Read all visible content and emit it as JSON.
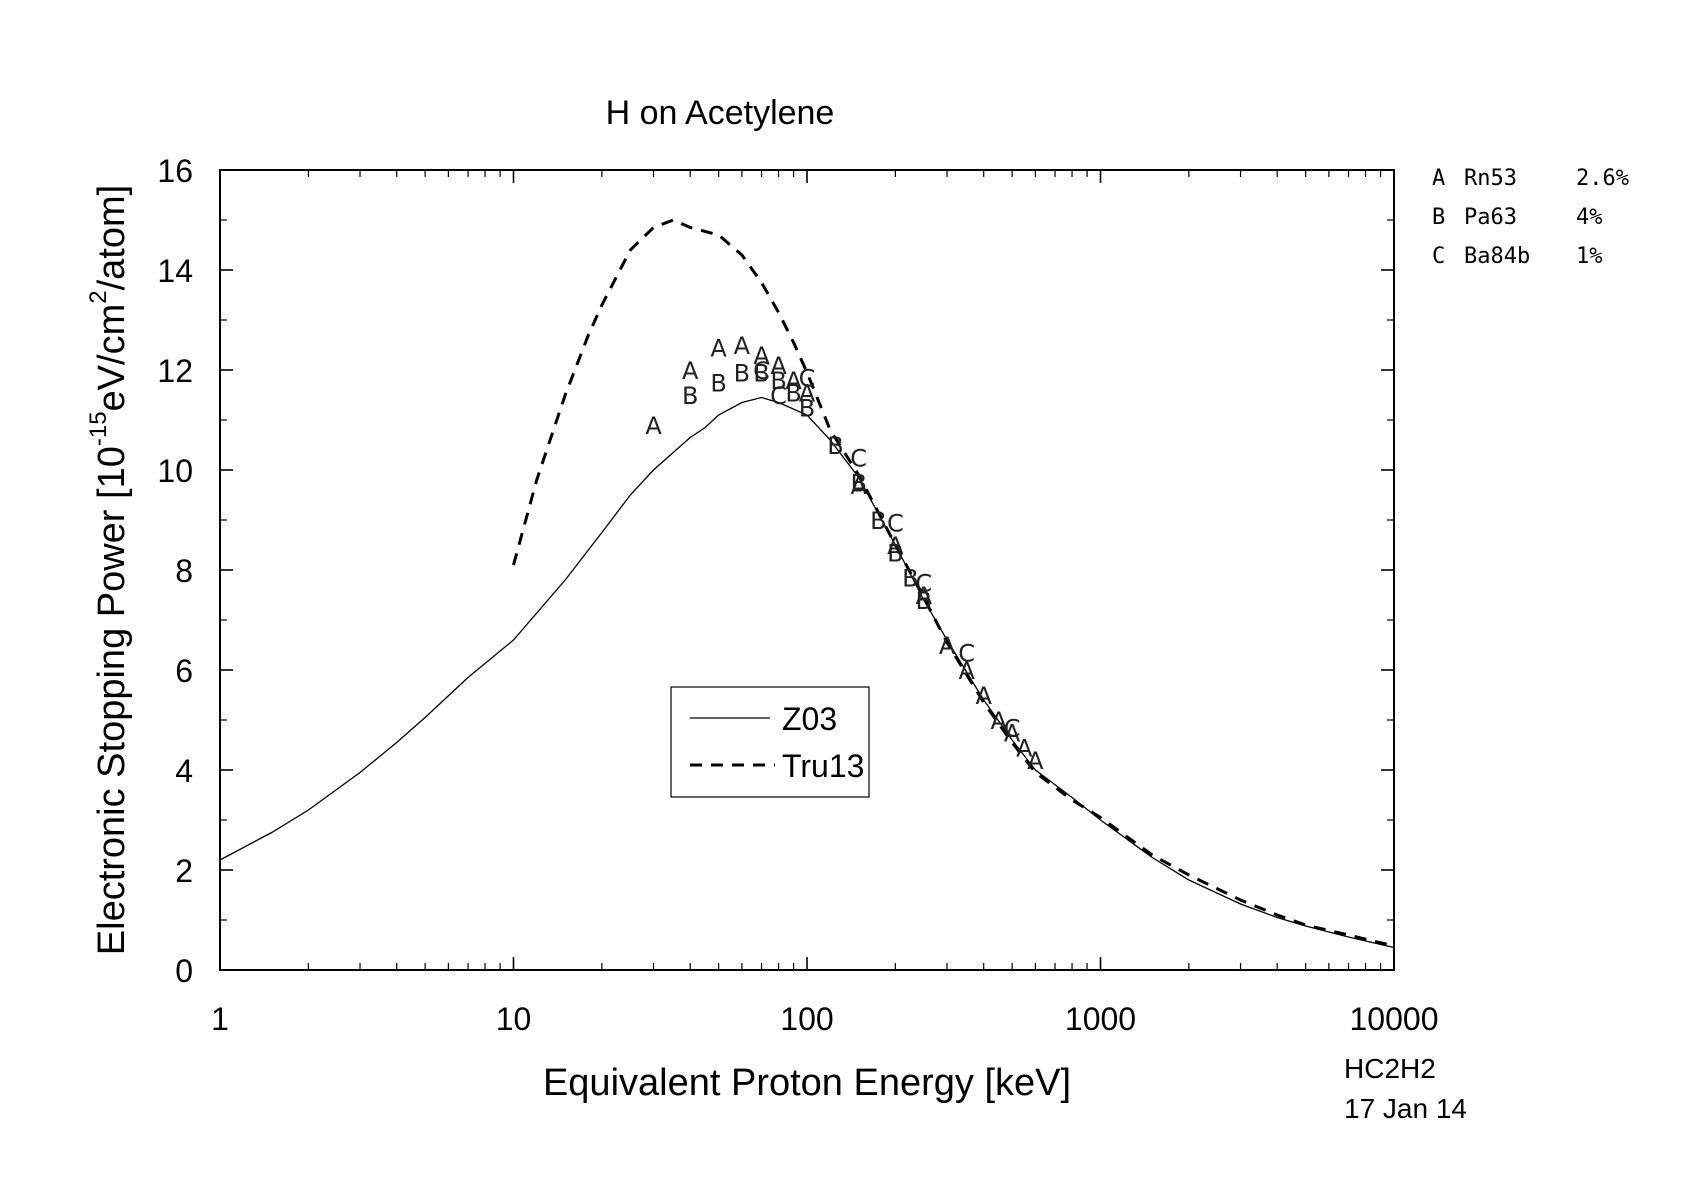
{
  "chart_data": {
    "type": "line",
    "title": "H on Acetylene",
    "xlabel": "Equivalent Proton Energy [keV]",
    "ylabel": "Electronic Stopping Power [10",
    "ylabel_exp1": "-15",
    "ylabel_mid": "eV/cm",
    "ylabel_exp2": "2",
    "ylabel_end": "/atom]",
    "xscale": "log",
    "xlim": [
      1,
      10000
    ],
    "ylim": [
      0,
      16
    ],
    "xticks": [
      1,
      10,
      100,
      1000,
      10000
    ],
    "xtick_labels": [
      "1",
      "10",
      "100",
      "1000",
      "10000"
    ],
    "yticks": [
      0,
      2,
      4,
      6,
      8,
      10,
      12,
      14,
      16
    ],
    "ytick_labels": [
      "0",
      "2",
      "4",
      "6",
      "8",
      "10",
      "12",
      "14",
      "16"
    ],
    "legend": {
      "position": "center",
      "entries": [
        "Z03",
        "Tru13"
      ]
    },
    "series": [
      {
        "name": "Z03",
        "style": "solid",
        "x": [
          1,
          1.5,
          2,
          3,
          4,
          5,
          7,
          10,
          15,
          20,
          25,
          30,
          35,
          40,
          45,
          50,
          60,
          70,
          80,
          100,
          120,
          150,
          200,
          250,
          300,
          400,
          500,
          600,
          800,
          1000,
          1500,
          2000,
          3000,
          4000,
          5000,
          7000,
          10000
        ],
        "y": [
          2.2,
          2.75,
          3.2,
          3.95,
          4.55,
          5.05,
          5.85,
          6.6,
          7.8,
          8.75,
          9.5,
          10.0,
          10.35,
          10.65,
          10.85,
          11.1,
          11.35,
          11.45,
          11.35,
          11.1,
          10.6,
          9.85,
          8.5,
          7.4,
          6.6,
          5.4,
          4.6,
          4.0,
          3.45,
          3.0,
          2.25,
          1.8,
          1.32,
          1.05,
          0.88,
          0.66,
          0.45
        ]
      },
      {
        "name": "Tru13",
        "style": "dashed",
        "x": [
          10,
          12,
          15,
          18,
          20,
          25,
          30,
          35,
          40,
          50,
          60,
          70,
          80,
          90,
          100,
          120,
          150,
          200,
          250,
          300,
          400,
          500,
          600,
          800,
          1000,
          1500,
          2000,
          3000,
          4000,
          5000,
          7000,
          10000
        ],
        "y": [
          8.1,
          9.8,
          11.5,
          12.7,
          13.3,
          14.4,
          14.85,
          15.0,
          14.85,
          14.7,
          14.3,
          13.75,
          13.15,
          12.55,
          11.95,
          10.8,
          9.9,
          8.5,
          7.45,
          6.55,
          5.35,
          4.55,
          3.95,
          3.4,
          3.05,
          2.3,
          1.9,
          1.4,
          1.1,
          0.9,
          0.7,
          0.48
        ]
      }
    ],
    "data_points": [
      {
        "label": "A",
        "x": 30,
        "y": 10.9
      },
      {
        "label": "A",
        "x": 40,
        "y": 12.0
      },
      {
        "label": "A",
        "x": 50,
        "y": 12.45
      },
      {
        "label": "A",
        "x": 60,
        "y": 12.5
      },
      {
        "label": "A",
        "x": 70,
        "y": 12.3
      },
      {
        "label": "A",
        "x": 80,
        "y": 12.1
      },
      {
        "label": "A",
        "x": 90,
        "y": 11.8
      },
      {
        "label": "A",
        "x": 100,
        "y": 11.55
      },
      {
        "label": "A",
        "x": 150,
        "y": 9.7
      },
      {
        "label": "A",
        "x": 200,
        "y": 8.5
      },
      {
        "label": "A",
        "x": 250,
        "y": 7.5
      },
      {
        "label": "A",
        "x": 300,
        "y": 6.5
      },
      {
        "label": "A",
        "x": 350,
        "y": 6.0
      },
      {
        "label": "A",
        "x": 400,
        "y": 5.5
      },
      {
        "label": "A",
        "x": 450,
        "y": 5.0
      },
      {
        "label": "A",
        "x": 500,
        "y": 4.75
      },
      {
        "label": "A",
        "x": 550,
        "y": 4.45
      },
      {
        "label": "A",
        "x": 600,
        "y": 4.2
      },
      {
        "label": "B",
        "x": 40,
        "y": 11.5
      },
      {
        "label": "B",
        "x": 50,
        "y": 11.75
      },
      {
        "label": "B",
        "x": 60,
        "y": 11.95
      },
      {
        "label": "B",
        "x": 70,
        "y": 11.95
      },
      {
        "label": "B",
        "x": 80,
        "y": 11.8
      },
      {
        "label": "B",
        "x": 90,
        "y": 11.55
      },
      {
        "label": "B",
        "x": 100,
        "y": 11.25
      },
      {
        "label": "B",
        "x": 125,
        "y": 10.5
      },
      {
        "label": "B",
        "x": 150,
        "y": 9.75
      },
      {
        "label": "B",
        "x": 175,
        "y": 9.0
      },
      {
        "label": "B",
        "x": 200,
        "y": 8.35
      },
      {
        "label": "B",
        "x": 225,
        "y": 7.85
      },
      {
        "label": "B",
        "x": 250,
        "y": 7.4
      },
      {
        "label": "C",
        "x": 70,
        "y": 12.0
      },
      {
        "label": "C",
        "x": 80,
        "y": 11.5
      },
      {
        "label": "C",
        "x": 100,
        "y": 11.85
      },
      {
        "label": "C",
        "x": 150,
        "y": 10.25
      },
      {
        "label": "C",
        "x": 200,
        "y": 8.95
      },
      {
        "label": "C",
        "x": 250,
        "y": 7.75
      },
      {
        "label": "C",
        "x": 350,
        "y": 6.35
      },
      {
        "label": "C",
        "x": 500,
        "y": 4.85
      }
    ],
    "datasets": [
      {
        "letter": "A",
        "name": "Rn53",
        "error": "2.6%"
      },
      {
        "letter": "B",
        "name": "Pa63",
        "error": "4%"
      },
      {
        "letter": "C",
        "name": "Ba84b",
        "error": "1%"
      }
    ]
  },
  "footer": {
    "code": "HC2H2",
    "date": "17 Jan 14"
  }
}
